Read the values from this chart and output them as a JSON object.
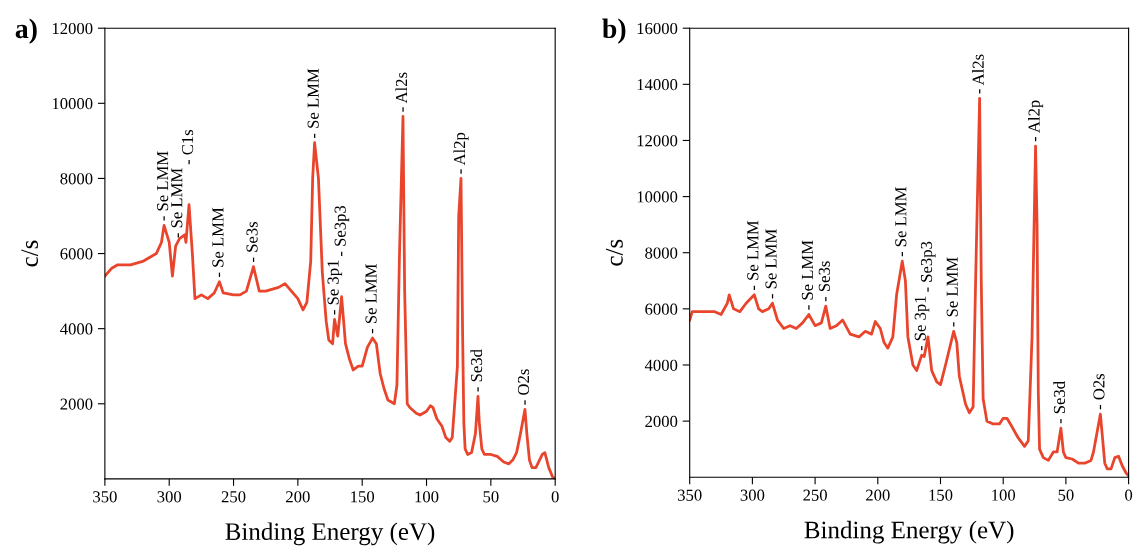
{
  "chart_data": [
    {
      "type": "line",
      "title": "a)",
      "xlabel": "Binding Energy (eV)",
      "ylabel": "c/s",
      "xlim": [
        350,
        0
      ],
      "ylim": [
        0,
        12000
      ],
      "xticks": [
        350,
        300,
        250,
        200,
        150,
        100,
        50,
        0
      ],
      "yticks": [
        2000,
        4000,
        6000,
        8000,
        10000,
        12000
      ],
      "grid": false,
      "legend": false,
      "series": [
        {
          "color": "#e8452c",
          "x": [
            350,
            345,
            340,
            330,
            320,
            315,
            310,
            306,
            304,
            300,
            297.5,
            295,
            292,
            288,
            287,
            284.6,
            282,
            280,
            275,
            270,
            265,
            261,
            258,
            250,
            245,
            240,
            234.5,
            230,
            225,
            215,
            210,
            205,
            200,
            196,
            193,
            190,
            188.5,
            187,
            184,
            181,
            178,
            176,
            173,
            171.5,
            169,
            166,
            163,
            160,
            157,
            153,
            150,
            146,
            142,
            139,
            136,
            133,
            130,
            125,
            123,
            121,
            118.3,
            117,
            115,
            113,
            108,
            105,
            100,
            97,
            95,
            92,
            88,
            85,
            82,
            80,
            76,
            75,
            73.2,
            72,
            71,
            70,
            68,
            65,
            62,
            60,
            59,
            57,
            55,
            50,
            45,
            40,
            36,
            33,
            30,
            27,
            23.5,
            22,
            20,
            18,
            15,
            10,
            8,
            5,
            2,
            0
          ],
          "values": [
            5400,
            5600,
            5700,
            5700,
            5800,
            5900,
            6000,
            6300,
            6750,
            6300,
            5400,
            6200,
            6400,
            6500,
            6300,
            7300,
            6000,
            4800,
            4900,
            4800,
            4950,
            5250,
            4950,
            4900,
            4900,
            5000,
            5650,
            5000,
            5000,
            5100,
            5200,
            5000,
            4800,
            4500,
            4700,
            5800,
            8000,
            8950,
            8000,
            5500,
            4200,
            3700,
            3600,
            4250,
            3800,
            4850,
            3600,
            3200,
            2900,
            3000,
            3000,
            3500,
            3750,
            3600,
            2800,
            2400,
            2100,
            2000,
            2500,
            6000,
            9650,
            5000,
            2000,
            1900,
            1750,
            1700,
            1800,
            1950,
            1900,
            1600,
            1400,
            1100,
            1000,
            1100,
            3000,
            7000,
            8000,
            4000,
            1500,
            800,
            650,
            700,
            1200,
            2200,
            1500,
            800,
            650,
            650,
            600,
            450,
            400,
            500,
            700,
            1200,
            1850,
            1200,
            500,
            300,
            300,
            650,
            700,
            300,
            50,
            0
          ]
        }
      ],
      "annotations": [
        {
          "text": "- Se LMM",
          "x": 304,
          "y": 6750
        },
        {
          "text": "- Se LMM",
          "x": 293,
          "y": 6300
        },
        {
          "text": "- C1s",
          "x": 284.6,
          "y": 7300
        },
        {
          "text": "- Se LMM",
          "x": 261,
          "y": 5250
        },
        {
          "text": "- Se3s",
          "x": 234.5,
          "y": 5650
        },
        {
          "text": "- Se LMM",
          "x": 187,
          "y": 8950
        },
        {
          "text": "- Se 3p1",
          "x": 171.5,
          "y": 4250
        },
        {
          "text": "- Se3p3",
          "x": 166,
          "y": 4850
        },
        {
          "text": "- Se LMM",
          "x": 142,
          "y": 3750
        },
        {
          "text": "- Al2s",
          "x": 118.3,
          "y": 9650
        },
        {
          "text": "- Al2p",
          "x": 73.2,
          "y": 8000
        },
        {
          "text": "- Se3d",
          "x": 60,
          "y": 2200
        },
        {
          "text": "- O2s",
          "x": 23.5,
          "y": 1850
        }
      ]
    },
    {
      "type": "line",
      "title": "b)",
      "xlabel": "Binding Energy (eV)",
      "ylabel": "c/s",
      "xlim": [
        350,
        0
      ],
      "ylim": [
        0,
        16000
      ],
      "xticks": [
        350,
        300,
        250,
        200,
        150,
        100,
        50,
        0
      ],
      "yticks": [
        2000,
        4000,
        6000,
        8000,
        10000,
        12000,
        14000,
        16000
      ],
      "grid": false,
      "legend": false,
      "series": [
        {
          "color": "#e8452c",
          "x": [
            350,
            348,
            340,
            330,
            325,
            320,
            318.5,
            315,
            310,
            305,
            298.5,
            295,
            292,
            287,
            284,
            280,
            275,
            270,
            265,
            260,
            255,
            250,
            245,
            241.5,
            238,
            233,
            228,
            222,
            215,
            210,
            205,
            202,
            198,
            195,
            192,
            188,
            185,
            180.5,
            178,
            176,
            172,
            169,
            165,
            163,
            160,
            157,
            153,
            150,
            146,
            139.5,
            137,
            135,
            130,
            127,
            124,
            122,
            118.8,
            117.5,
            116,
            113,
            108,
            103,
            100,
            97,
            93,
            88,
            83,
            80,
            77,
            74.2,
            73,
            72,
            71,
            68,
            64,
            60,
            57,
            54,
            52,
            50,
            45,
            40,
            35,
            30,
            28,
            22.5,
            21,
            19,
            17,
            14,
            11,
            8,
            5,
            2,
            0
          ],
          "values": [
            5600,
            5900,
            5900,
            5900,
            5800,
            6200,
            6500,
            6000,
            5900,
            6200,
            6500,
            6000,
            5900,
            6000,
            6200,
            5600,
            5300,
            5400,
            5300,
            5500,
            5800,
            5400,
            5500,
            6100,
            5300,
            5400,
            5600,
            5100,
            5000,
            5200,
            5100,
            5550,
            5300,
            4800,
            4600,
            5000,
            6500,
            7700,
            7000,
            5000,
            4000,
            3800,
            4350,
            4300,
            5000,
            3800,
            3400,
            3300,
            4000,
            5200,
            4800,
            3600,
            2600,
            2300,
            2500,
            7000,
            13500,
            7000,
            2800,
            2000,
            1900,
            1900,
            2100,
            2100,
            1800,
            1400,
            1100,
            1300,
            5000,
            11800,
            9000,
            3000,
            1000,
            700,
            600,
            900,
            900,
            1750,
            900,
            700,
            650,
            500,
            500,
            600,
            900,
            2250,
            1500,
            500,
            300,
            300,
            700,
            750,
            400,
            150,
            50
          ]
        }
      ],
      "annotations": [
        {
          "text": "- Se LMM",
          "x": 298.5,
          "y": 6500
        },
        {
          "text": "- Se LMM",
          "x": 284,
          "y": 6200
        },
        {
          "text": "- Se LMM",
          "x": 255,
          "y": 5800
        },
        {
          "text": "- Se3s",
          "x": 241.5,
          "y": 6100
        },
        {
          "text": "- Se LMM",
          "x": 180.5,
          "y": 7700
        },
        {
          "text": "- Se 3p1",
          "x": 165,
          "y": 4350
        },
        {
          "text": "- Se3p3",
          "x": 160,
          "y": 5000
        },
        {
          "text": "- Se LMM",
          "x": 139.5,
          "y": 5200
        },
        {
          "text": "- Al2s",
          "x": 118.8,
          "y": 13500
        },
        {
          "text": "- Al2p",
          "x": 74.2,
          "y": 11800
        },
        {
          "text": "- Se3d",
          "x": 54,
          "y": 1750
        },
        {
          "text": "- O2s",
          "x": 22.5,
          "y": 2250
        }
      ]
    }
  ]
}
